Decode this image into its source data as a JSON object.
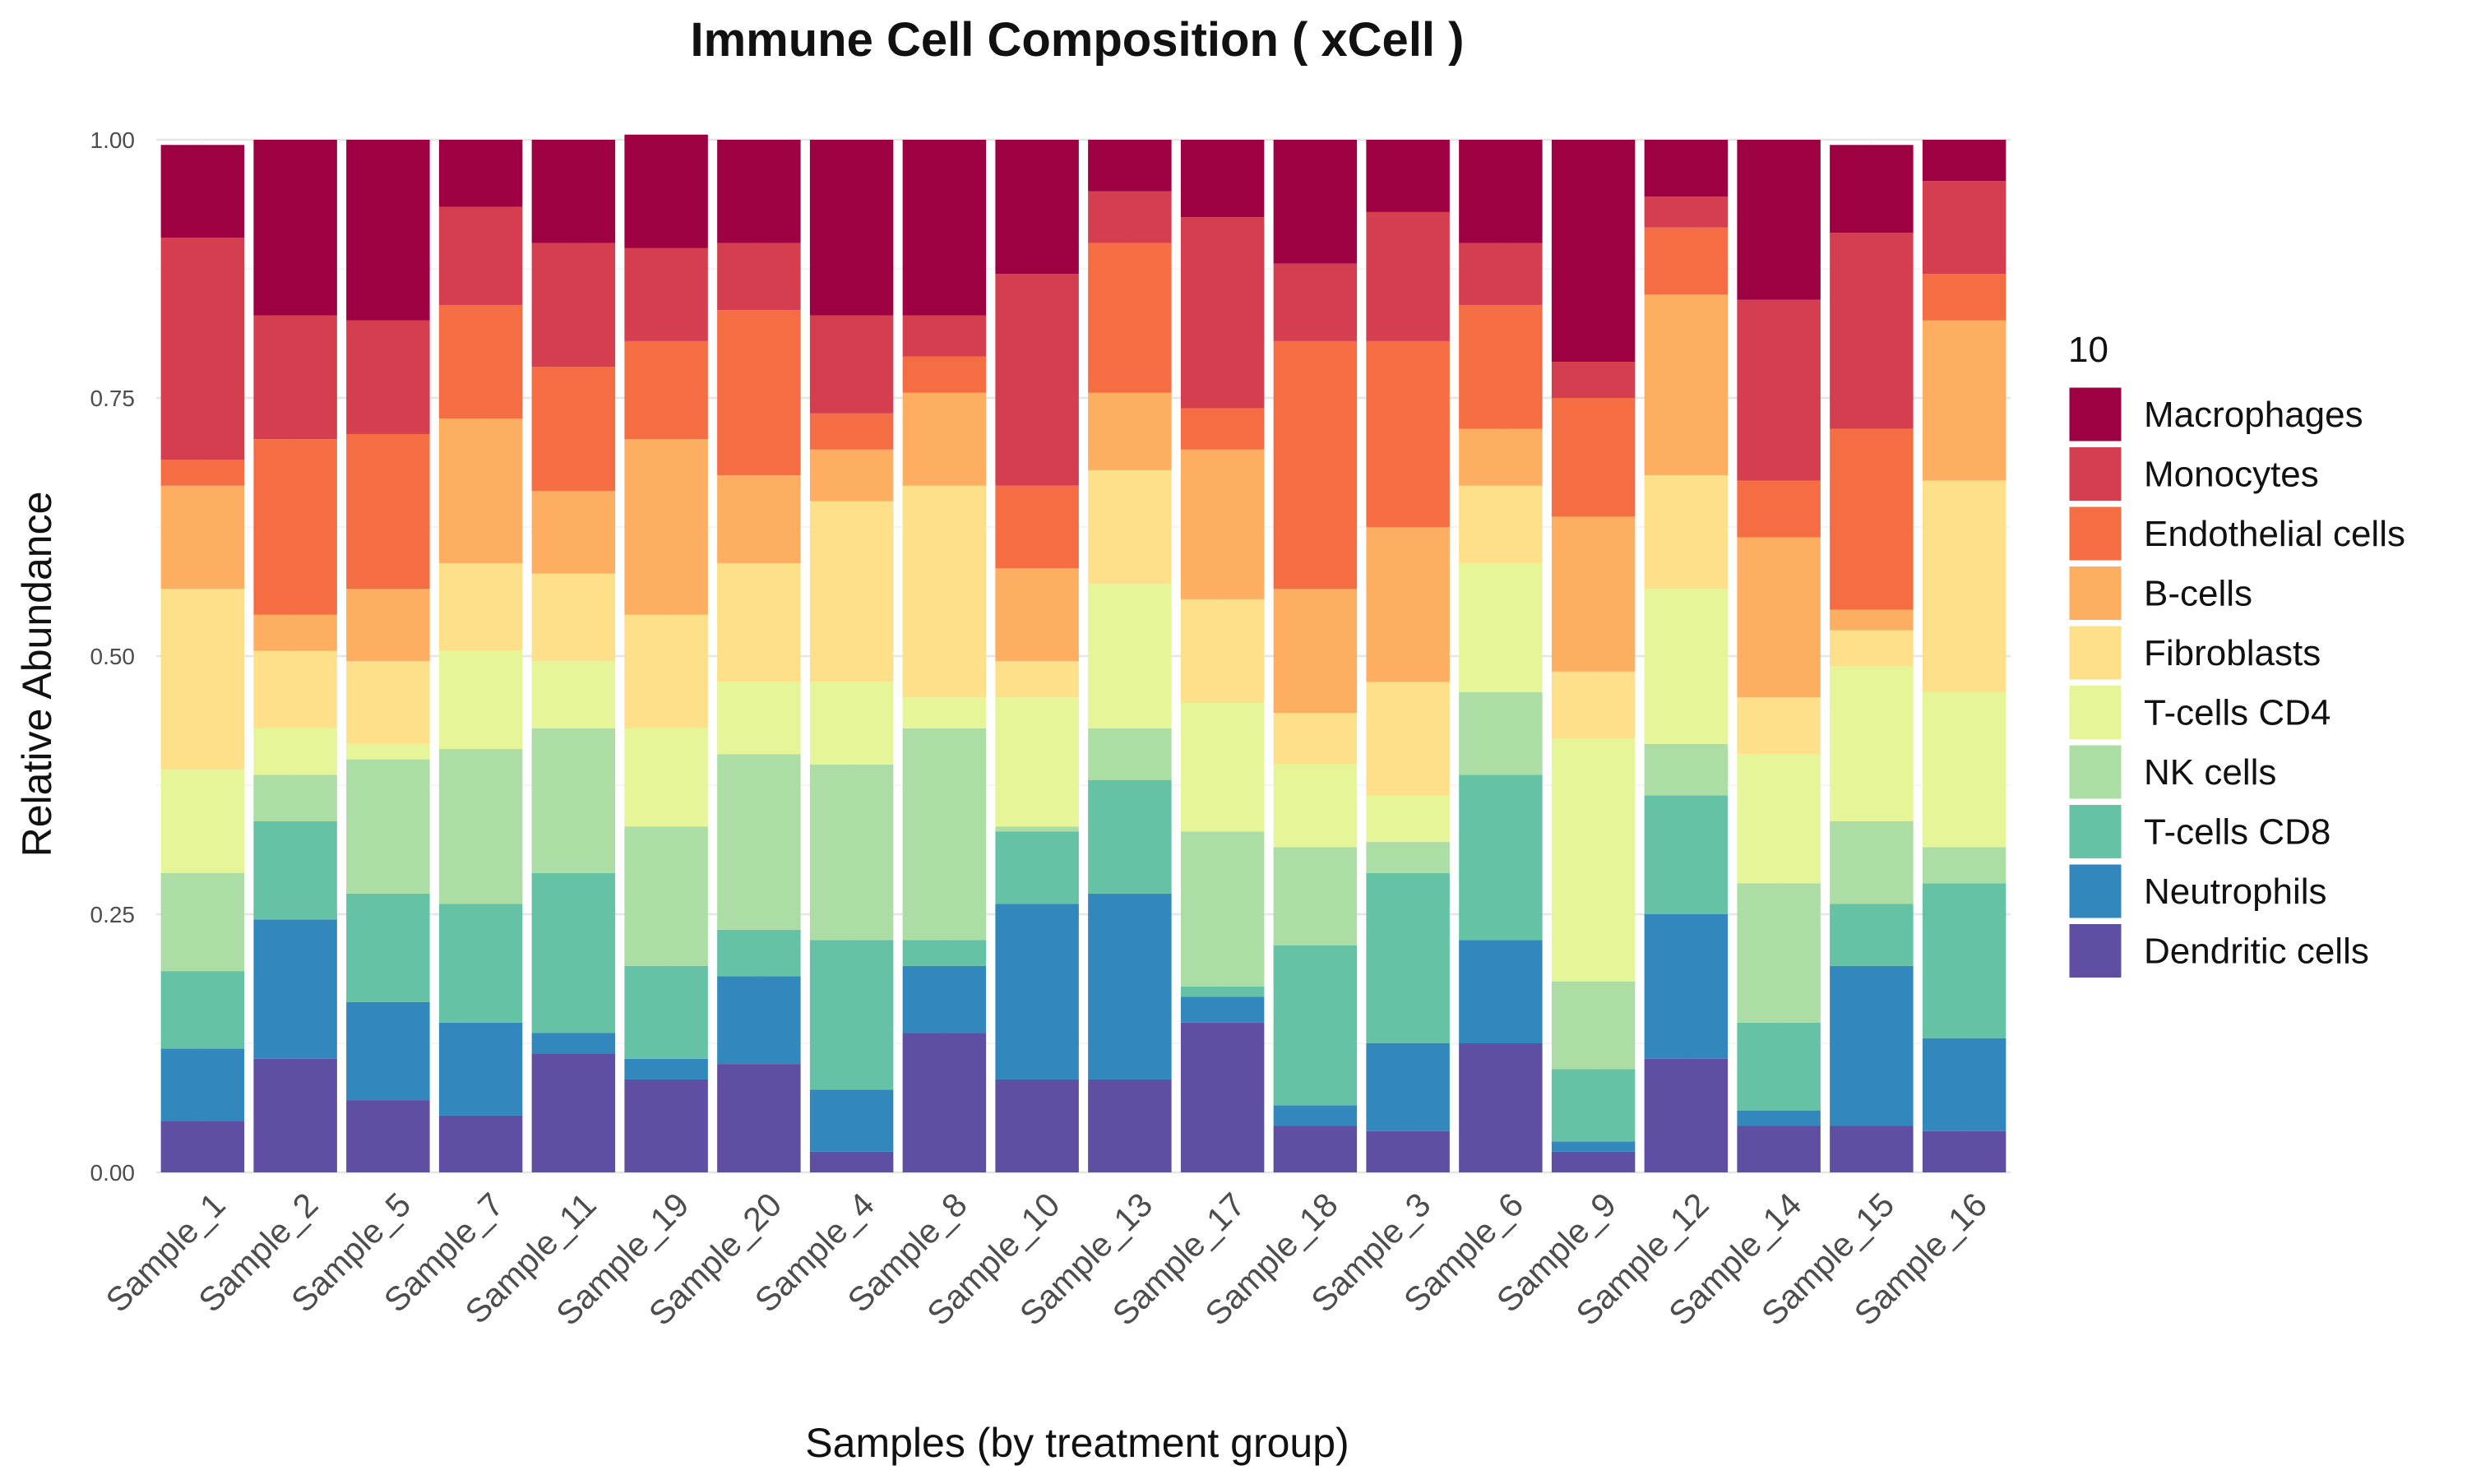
{
  "chart_data": {
    "type": "bar",
    "stacked": true,
    "title": "Immune Cell Composition ( xCell )",
    "xlabel": "Samples (by treatment group)",
    "ylabel": "Relative Abundance",
    "ylim": [
      0,
      1
    ],
    "yticks": [
      "0.00",
      "0.25",
      "0.50",
      "0.75",
      "1.00"
    ],
    "legend_title": "10",
    "legend_position": "right",
    "categories": [
      "Sample_1",
      "Sample_2",
      "Sample_5",
      "Sample_7",
      "Sample_11",
      "Sample_19",
      "Sample_20",
      "Sample_4",
      "Sample_8",
      "Sample_10",
      "Sample_13",
      "Sample_17",
      "Sample_18",
      "Sample_3",
      "Sample_6",
      "Sample_9",
      "Sample_12",
      "Sample_14",
      "Sample_15",
      "Sample_16"
    ],
    "series": [
      {
        "name": "Dendritic cells",
        "color": "#5E4FA2",
        "values": [
          0.05,
          0.11,
          0.07,
          0.055,
          0.115,
          0.09,
          0.105,
          0.02,
          0.135,
          0.09,
          0.09,
          0.145,
          0.045,
          0.04,
          0.125,
          0.02,
          0.11,
          0.045,
          0.045,
          0.04
        ]
      },
      {
        "name": "Neutrophils",
        "color": "#3288BD",
        "values": [
          0.07,
          0.135,
          0.095,
          0.09,
          0.02,
          0.02,
          0.085,
          0.06,
          0.065,
          0.17,
          0.18,
          0.025,
          0.02,
          0.085,
          0.1,
          0.01,
          0.14,
          0.015,
          0.155,
          0.09
        ]
      },
      {
        "name": "T-cells CD8",
        "color": "#66C2A5",
        "values": [
          0.075,
          0.095,
          0.105,
          0.115,
          0.155,
          0.09,
          0.045,
          0.145,
          0.025,
          0.07,
          0.11,
          0.01,
          0.155,
          0.165,
          0.16,
          0.07,
          0.115,
          0.085,
          0.06,
          0.15
        ]
      },
      {
        "name": "NK cells",
        "color": "#ABDDA4",
        "values": [
          0.095,
          0.045,
          0.13,
          0.15,
          0.14,
          0.135,
          0.17,
          0.17,
          0.205,
          0.005,
          0.05,
          0.15,
          0.095,
          0.03,
          0.08,
          0.085,
          0.05,
          0.135,
          0.08,
          0.035
        ]
      },
      {
        "name": "T-cells CD4",
        "color": "#E6F598",
        "values": [
          0.1,
          0.045,
          0.015,
          0.095,
          0.065,
          0.095,
          0.07,
          0.08,
          0.03,
          0.125,
          0.14,
          0.125,
          0.08,
          0.045,
          0.125,
          0.235,
          0.15,
          0.125,
          0.15,
          0.15
        ]
      },
      {
        "name": "Fibroblasts",
        "color": "#FEE08B",
        "values": [
          0.175,
          0.075,
          0.08,
          0.085,
          0.085,
          0.11,
          0.115,
          0.175,
          0.205,
          0.035,
          0.11,
          0.1,
          0.05,
          0.11,
          0.075,
          0.065,
          0.11,
          0.055,
          0.035,
          0.205
        ]
      },
      {
        "name": "B-cells",
        "color": "#FDAE61",
        "values": [
          0.1,
          0.035,
          0.07,
          0.14,
          0.08,
          0.17,
          0.085,
          0.05,
          0.09,
          0.09,
          0.075,
          0.145,
          0.12,
          0.15,
          0.055,
          0.15,
          0.175,
          0.155,
          0.02,
          0.155
        ]
      },
      {
        "name": "Endothelial cells",
        "color": "#F46D43",
        "values": [
          0.025,
          0.17,
          0.15,
          0.11,
          0.12,
          0.095,
          0.16,
          0.035,
          0.035,
          0.08,
          0.145,
          0.04,
          0.24,
          0.18,
          0.12,
          0.115,
          0.065,
          0.055,
          0.175,
          0.045
        ]
      },
      {
        "name": "Monocytes",
        "color": "#D53E4F",
        "values": [
          0.215,
          0.12,
          0.11,
          0.095,
          0.12,
          0.09,
          0.065,
          0.095,
          0.04,
          0.205,
          0.05,
          0.185,
          0.075,
          0.125,
          0.06,
          0.035,
          0.03,
          0.175,
          0.19,
          0.09
        ]
      },
      {
        "name": "Macrophages",
        "color": "#9E0142",
        "values": [
          0.09,
          0.17,
          0.175,
          0.065,
          0.1,
          0.11,
          0.1,
          0.17,
          0.17,
          0.13,
          0.05,
          0.075,
          0.12,
          0.07,
          0.1,
          0.215,
          0.055,
          0.155,
          0.085,
          0.04
        ]
      }
    ]
  }
}
